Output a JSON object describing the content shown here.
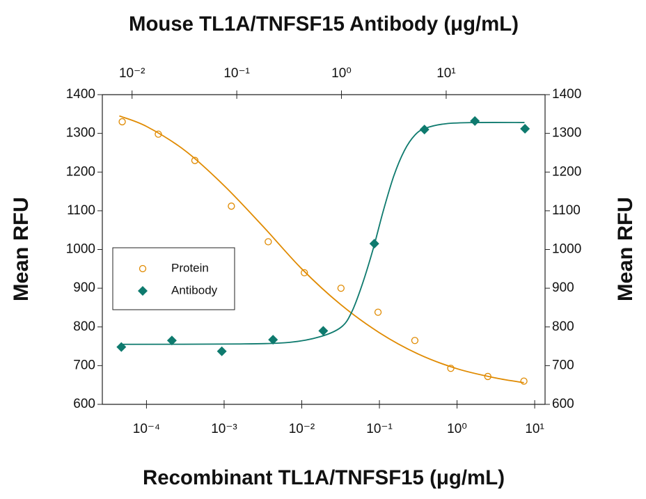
{
  "chart_data": {
    "type": "scatter",
    "title": "Mouse TL1A/TNFSF15 Antibody (μg/mL)",
    "x_label": "Recombinant TL1A/TNFSF15 (μg/mL)",
    "y_label": "Mean RFU",
    "y2_label": "Mean RFU",
    "xscale": "log",
    "xlim": [
      2.7e-05,
      13.6
    ],
    "xticks": [
      {
        "value": 0.0001,
        "label": "10⁻⁴"
      },
      {
        "value": 0.001,
        "label": "10⁻³"
      },
      {
        "value": 0.01,
        "label": "10⁻²"
      },
      {
        "value": 0.1,
        "label": "10⁻¹"
      },
      {
        "value": 1,
        "label": "10⁰"
      },
      {
        "value": 10,
        "label": "10¹"
      }
    ],
    "x2lim": [
      0.0052,
      88
    ],
    "x2ticks": [
      {
        "value": 0.01,
        "label": "10⁻²"
      },
      {
        "value": 0.1,
        "label": "10⁻¹"
      },
      {
        "value": 1,
        "label": "10⁰"
      },
      {
        "value": 10,
        "label": "10¹"
      }
    ],
    "ylim": [
      600,
      1400
    ],
    "yticks": [
      600,
      700,
      800,
      900,
      1000,
      1100,
      1200,
      1300,
      1400
    ],
    "y2lim": [
      600,
      1400
    ],
    "y2ticks": [
      600,
      700,
      800,
      900,
      1000,
      1100,
      1200,
      1300,
      1400
    ],
    "legend": "left",
    "series": [
      {
        "name": "Protein",
        "color": "#e08a00",
        "marker": "circle",
        "x": [
          4.87e-05,
          0.000142,
          0.00042,
          0.00124,
          0.0037,
          0.0108,
          0.032,
          0.096,
          0.286,
          0.83,
          2.49,
          7.26
        ],
        "values": [
          1330,
          1298,
          1230,
          1112,
          1020,
          940,
          900,
          838,
          765,
          693,
          672,
          660
        ],
        "fit": {
          "x": [
            4.47e-05,
            0.0001,
            0.000316,
            0.001,
            0.00316,
            0.01,
            0.0316,
            0.1,
            0.316,
            1,
            3.16,
            7.26
          ],
          "values": [
            1345,
            1318,
            1255,
            1165,
            1060,
            950,
            858,
            785,
            730,
            692,
            668,
            656
          ]
        }
      },
      {
        "name": "Antibody",
        "color": "#0e7a6e",
        "marker": "diamond",
        "axis": "x2",
        "x": [
          0.0079,
          0.024,
          0.072,
          0.222,
          0.67,
          2.06,
          6.2,
          18.8,
          56.6
        ],
        "values": [
          748,
          765,
          737,
          767,
          790,
          1015,
          1310,
          1332,
          1312
        ],
        "fit": {
          "x": [
            0.0079,
            0.1,
            0.316,
            0.631,
            1,
            1.26,
            1.58,
            2,
            2.51,
            3.16,
            3.98,
            5.01,
            6.31,
            10,
            20,
            56
          ],
          "values": [
            755,
            756,
            760,
            775,
            800,
            840,
            910,
            1000,
            1100,
            1190,
            1255,
            1295,
            1313,
            1325,
            1328,
            1328
          ]
        }
      }
    ]
  }
}
